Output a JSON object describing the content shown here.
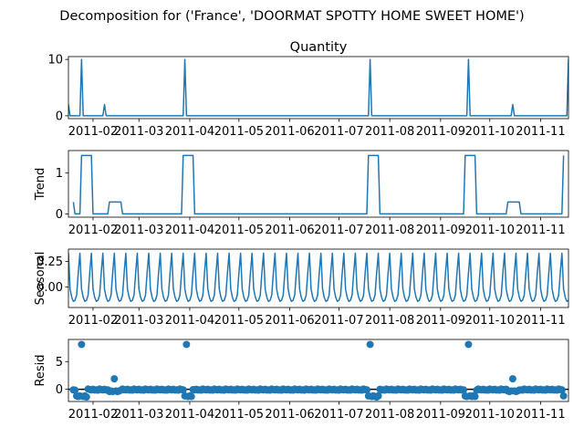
{
  "figure": {
    "suptitle": "Decomposition for ('France', 'DOORMAT SPOTTY HOME SWEET HOME')"
  },
  "colors": {
    "line": "#1f77b4",
    "zero": "#000000"
  },
  "chart_data": [
    {
      "id": "observed",
      "type": "line",
      "title": "Quantity",
      "ylabel": "",
      "xlim": [
        "2011-01-17",
        "2011-11-18"
      ],
      "ylim": [
        -0.5,
        10.5
      ],
      "yticks": [
        0,
        10
      ],
      "xticks": [
        "2011-02",
        "2011-03",
        "2011-04",
        "2011-05",
        "2011-06",
        "2011-07",
        "2011-08",
        "2011-09",
        "2011-10",
        "2011-11"
      ],
      "points": [
        [
          "2011-01-17",
          2
        ],
        [
          "2011-01-18",
          0
        ],
        [
          "2011-01-24",
          0
        ],
        [
          "2011-01-25",
          10
        ],
        [
          "2011-01-26",
          0
        ],
        [
          "2011-02-07",
          0
        ],
        [
          "2011-02-08",
          2
        ],
        [
          "2011-02-09",
          0
        ],
        [
          "2011-03-28",
          0
        ],
        [
          "2011-03-29",
          10
        ],
        [
          "2011-03-30",
          0
        ],
        [
          "2011-07-19",
          0
        ],
        [
          "2011-07-20",
          10
        ],
        [
          "2011-07-21",
          0
        ],
        [
          "2011-09-17",
          0
        ],
        [
          "2011-09-18",
          10
        ],
        [
          "2011-09-19",
          0
        ],
        [
          "2011-10-14",
          0
        ],
        [
          "2011-10-15",
          2
        ],
        [
          "2011-10-16",
          0
        ],
        [
          "2011-11-17",
          0
        ],
        [
          "2011-11-18",
          10
        ]
      ]
    },
    {
      "id": "trend",
      "type": "line",
      "title": "",
      "ylabel": "Trend",
      "xlim": [
        "2011-01-17",
        "2011-11-18"
      ],
      "ylim": [
        -0.08,
        1.55
      ],
      "yticks": [
        0,
        1
      ],
      "xticks": [
        "2011-02",
        "2011-03",
        "2011-04",
        "2011-05",
        "2011-06",
        "2011-07",
        "2011-08",
        "2011-09",
        "2011-10",
        "2011-11"
      ],
      "points": [
        [
          "2011-01-20",
          0.29
        ],
        [
          "2011-01-21",
          0
        ],
        [
          "2011-01-24",
          0
        ],
        [
          "2011-01-25",
          1.43
        ],
        [
          "2011-01-31",
          1.43
        ],
        [
          "2011-02-01",
          0
        ],
        [
          "2011-02-10",
          0
        ],
        [
          "2011-02-11",
          0.29
        ],
        [
          "2011-02-18",
          0.29
        ],
        [
          "2011-02-19",
          0
        ],
        [
          "2011-03-27",
          0
        ],
        [
          "2011-03-28",
          1.43
        ],
        [
          "2011-04-03",
          1.43
        ],
        [
          "2011-04-04",
          0
        ],
        [
          "2011-07-18",
          0
        ],
        [
          "2011-07-19",
          1.43
        ],
        [
          "2011-07-25",
          1.43
        ],
        [
          "2011-07-26",
          0
        ],
        [
          "2011-09-15",
          0
        ],
        [
          "2011-09-16",
          1.43
        ],
        [
          "2011-09-22",
          1.43
        ],
        [
          "2011-09-23",
          0
        ],
        [
          "2011-10-11",
          0
        ],
        [
          "2011-10-12",
          0.29
        ],
        [
          "2011-10-19",
          0.29
        ],
        [
          "2011-10-20",
          0
        ],
        [
          "2011-11-14",
          0
        ],
        [
          "2011-11-15",
          1.43
        ]
      ]
    },
    {
      "id": "seasonal",
      "type": "line",
      "title": "",
      "ylabel": "Seasonal",
      "xlim": [
        "2011-01-17",
        "2011-11-18"
      ],
      "ylim": [
        -0.2,
        0.37
      ],
      "yticks": [
        -0.0,
        0.25
      ],
      "ytick_labels": [
        "0.00",
        "0.25"
      ],
      "xticks": [
        "2011-02",
        "2011-03",
        "2011-04",
        "2011-05",
        "2011-06",
        "2011-07",
        "2011-08",
        "2011-09",
        "2011-10",
        "2011-11"
      ],
      "period_days": 7,
      "start": "2011-01-17",
      "end": "2011-11-18",
      "weekly_pattern": [
        0.33,
        -0.02,
        -0.1,
        -0.14,
        -0.13,
        -0.08,
        0.14
      ]
    },
    {
      "id": "resid",
      "type": "scatter",
      "title": "",
      "ylabel": "Resid",
      "xlim": [
        "2011-01-17",
        "2011-11-18"
      ],
      "ylim": [
        -2.2,
        9.0
      ],
      "yticks": [
        0,
        5
      ],
      "zero_line": true,
      "xticks": [
        "2011-02",
        "2011-03",
        "2011-04",
        "2011-05",
        "2011-06",
        "2011-07",
        "2011-08",
        "2011-09",
        "2011-10",
        "2011-11"
      ],
      "start": "2011-01-20",
      "end": "2011-11-15",
      "baseline": [
        -0.1,
        -0.15,
        0.05,
        -0.05,
        -0.1,
        0.0,
        -0.12
      ],
      "special": [
        [
          "2011-01-22",
          -1.2
        ],
        [
          "2011-01-23",
          -1.3
        ],
        [
          "2011-01-24",
          -1.2
        ],
        [
          "2011-01-25",
          8.1
        ],
        [
          "2011-01-26",
          -1.3
        ],
        [
          "2011-01-27",
          -1.2
        ],
        [
          "2011-01-28",
          -1.4
        ],
        [
          "2011-02-11",
          -0.4
        ],
        [
          "2011-02-12",
          -0.3
        ],
        [
          "2011-02-13",
          -0.4
        ],
        [
          "2011-02-14",
          1.9
        ],
        [
          "2011-02-15",
          -0.3
        ],
        [
          "2011-02-16",
          -0.4
        ],
        [
          "2011-02-17",
          -0.3
        ],
        [
          "2011-03-29",
          -1.2
        ],
        [
          "2011-03-30",
          8.1
        ],
        [
          "2011-03-31",
          -1.3
        ],
        [
          "2011-04-01",
          -1.2
        ],
        [
          "2011-04-02",
          -1.3
        ],
        [
          "2011-07-19",
          -1.2
        ],
        [
          "2011-07-20",
          8.1
        ],
        [
          "2011-07-21",
          -1.3
        ],
        [
          "2011-07-22",
          -1.2
        ],
        [
          "2011-07-23",
          -1.3
        ],
        [
          "2011-07-24",
          -1.4
        ],
        [
          "2011-07-25",
          -1.2
        ],
        [
          "2011-09-16",
          -1.2
        ],
        [
          "2011-09-17",
          -1.3
        ],
        [
          "2011-09-18",
          8.1
        ],
        [
          "2011-09-19",
          -1.2
        ],
        [
          "2011-09-20",
          -1.3
        ],
        [
          "2011-09-21",
          -1.2
        ],
        [
          "2011-09-22",
          -1.3
        ],
        [
          "2011-10-12",
          -0.3
        ],
        [
          "2011-10-13",
          -0.4
        ],
        [
          "2011-10-14",
          -0.3
        ],
        [
          "2011-10-15",
          1.9
        ],
        [
          "2011-10-16",
          -0.3
        ],
        [
          "2011-10-17",
          -0.4
        ],
        [
          "2011-10-18",
          -0.3
        ],
        [
          "2011-11-15",
          -1.2
        ]
      ]
    }
  ]
}
